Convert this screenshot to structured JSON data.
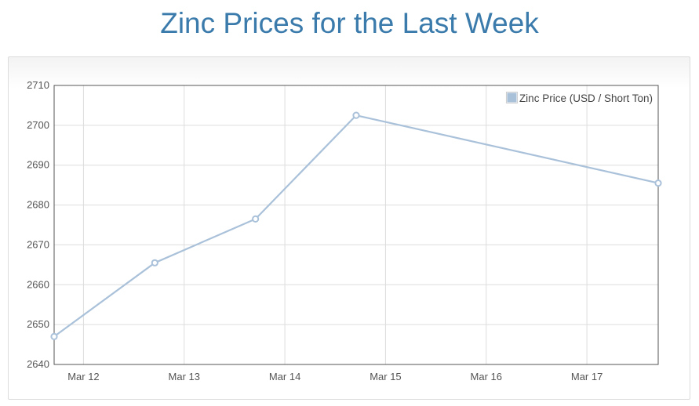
{
  "page": {
    "title": "Zinc Prices for the Last Week"
  },
  "chart_data": {
    "type": "line",
    "title": "",
    "xlabel": "",
    "ylabel": "",
    "x_tick_labels": [
      "Mar 12",
      "Mar 13",
      "Mar 14",
      "Mar 15",
      "Mar 16",
      "Mar 17"
    ],
    "y_ticks": [
      2640,
      2650,
      2660,
      2670,
      2680,
      2690,
      2700,
      2710
    ],
    "ylim": [
      2640,
      2710
    ],
    "xlim": [
      "2017-03-11 17:00",
      "2017-03-17 17:00"
    ],
    "grid": true,
    "legend_position": "top-right",
    "series": [
      {
        "name": "Zinc Price (USD / Short Ton)",
        "color": "#aac1da",
        "points": [
          {
            "x": "2017-03-11 17:00",
            "y": 2647
          },
          {
            "x": "2017-03-12 17:00",
            "y": 2665.5
          },
          {
            "x": "2017-03-13 17:00",
            "y": 2676.5
          },
          {
            "x": "2017-03-14 17:00",
            "y": 2702.5
          },
          {
            "x": "2017-03-17 17:00",
            "y": 2685.5
          }
        ]
      }
    ]
  }
}
